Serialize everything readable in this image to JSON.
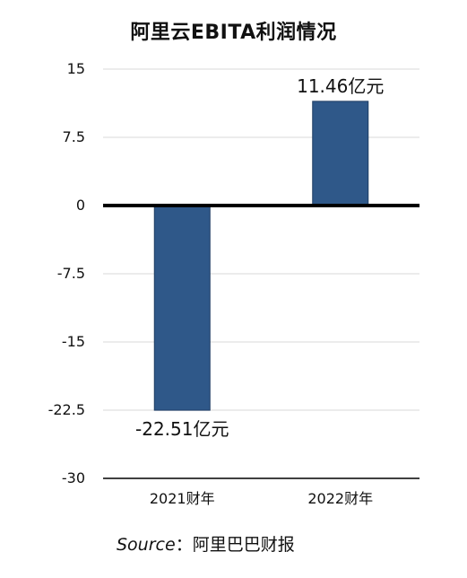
{
  "chart_data": {
    "type": "bar",
    "title": "阿里云EBITA利润情况",
    "categories": [
      "2021财年",
      "2022财年"
    ],
    "values": [
      -22.51,
      11.46
    ],
    "data_labels": [
      "-22.51亿元",
      "11.46亿元"
    ],
    "ylim": [
      -30,
      15
    ],
    "yticks": [
      15,
      7.5,
      0,
      -7.5,
      -15,
      -22.5,
      -30
    ],
    "ytick_labels": [
      "15",
      "7.5",
      "0",
      "-7.5",
      "-15",
      "-22.5",
      "-30"
    ],
    "xlabel": "",
    "ylabel": "",
    "grid": true,
    "legend": "none",
    "colors": {
      "bar": "#2F5889",
      "bar_edge": "#1F3D63",
      "grid": "#D9D9D9",
      "zero_line": "#000000"
    }
  },
  "source": {
    "key": "Source",
    "separator": "：",
    "text": "阿里巴巴财报"
  }
}
